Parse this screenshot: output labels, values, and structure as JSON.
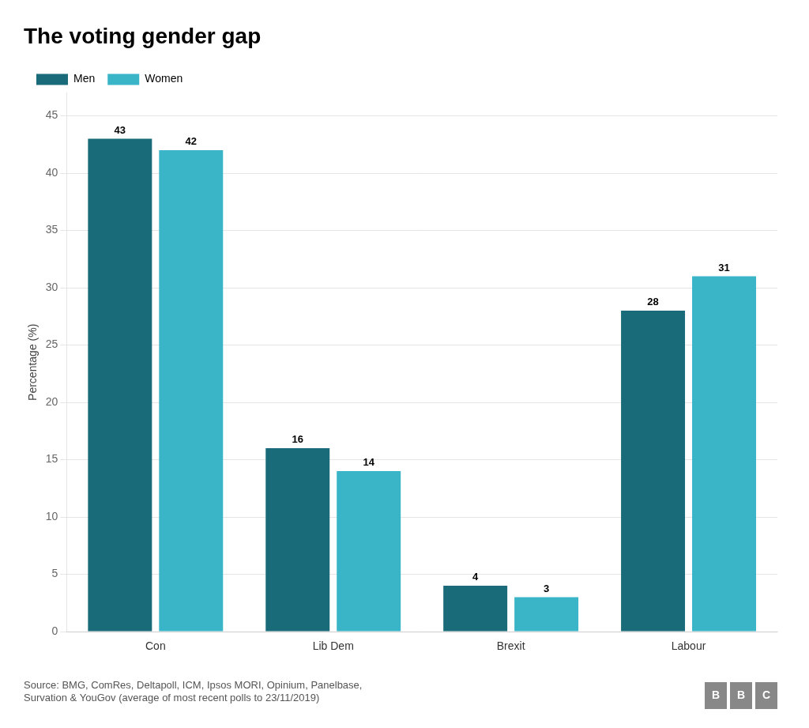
{
  "chart_data": {
    "type": "bar",
    "title": "The voting gender gap",
    "categories": [
      "Con",
      "Lib Dem",
      "Brexit",
      "Labour"
    ],
    "series": [
      {
        "name": "Men",
        "color": "#1a6b7a",
        "values": [
          43,
          16,
          4,
          28
        ]
      },
      {
        "name": "Women",
        "color": "#3ab5c8",
        "values": [
          42,
          14,
          3,
          31
        ]
      }
    ],
    "ylabel": "Percentage (%)",
    "ylim": [
      0,
      47
    ],
    "yticks": [
      0,
      5,
      10,
      15,
      20,
      25,
      30,
      35,
      40,
      45
    ],
    "grid": true,
    "legend": "top",
    "data_labels": true,
    "annotations": [
      "Source: BMG, ComRes, Deltapoll, ICM, Ipsos MORI, Opinium, Panelbase,\nSurvation & YouGov (average of most recent polls to 23/11/2019)",
      "BBC"
    ]
  }
}
